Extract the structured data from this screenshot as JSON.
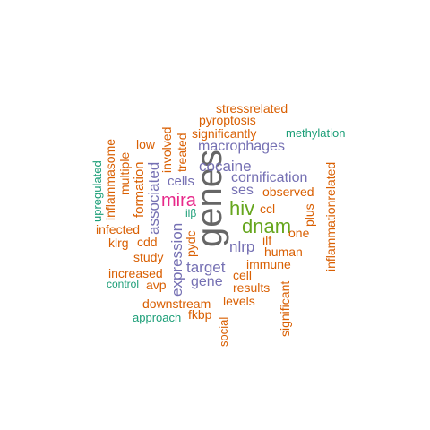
{
  "words": {
    "genes": "genes",
    "hiv": "hiv",
    "dnam": "dnam",
    "mira": "mira",
    "cocaine": "cocaine",
    "macrophages": "macrophages",
    "cornification": "cornification",
    "ses": "ses",
    "nlrp": "nlrp",
    "target": "target",
    "gene": "gene",
    "cells": "cells",
    "expression": "expression",
    "associated": "associated",
    "significantly": "significantly",
    "pyroptosis": "pyroptosis",
    "stressrelated": "stressrelated",
    "methylation": "methylation",
    "observed": "observed",
    "immune": "immune",
    "human": "human",
    "ilf": "ilf",
    "ccl": "ccl",
    "one": "one",
    "plus": "plus",
    "inflammationrelated": "inflammationrelated",
    "cell": "cell",
    "results": "results",
    "levels": "levels",
    "significant": "significant",
    "social": "social",
    "fkbp": "fkbp",
    "approach": "approach",
    "downstream": "downstream",
    "increased": "increased",
    "control": "control",
    "avp": "avp",
    "study": "study",
    "cdd": "cdd",
    "klrg": "klrg",
    "infected": "infected",
    "pydc": "pydc",
    "ilb": "ilβ",
    "low": "low",
    "treated": "treated",
    "involved": "involved",
    "formation": "formation",
    "multiple": "multiple",
    "inflammasome": "inflammasome",
    "upregulated": "upregulated"
  },
  "colors": {
    "orange": "#d95f02",
    "purple": "#7570b3",
    "teal": "#1b9e77",
    "green": "#66a61e",
    "pink": "#e7298a",
    "gray": "#666666"
  }
}
